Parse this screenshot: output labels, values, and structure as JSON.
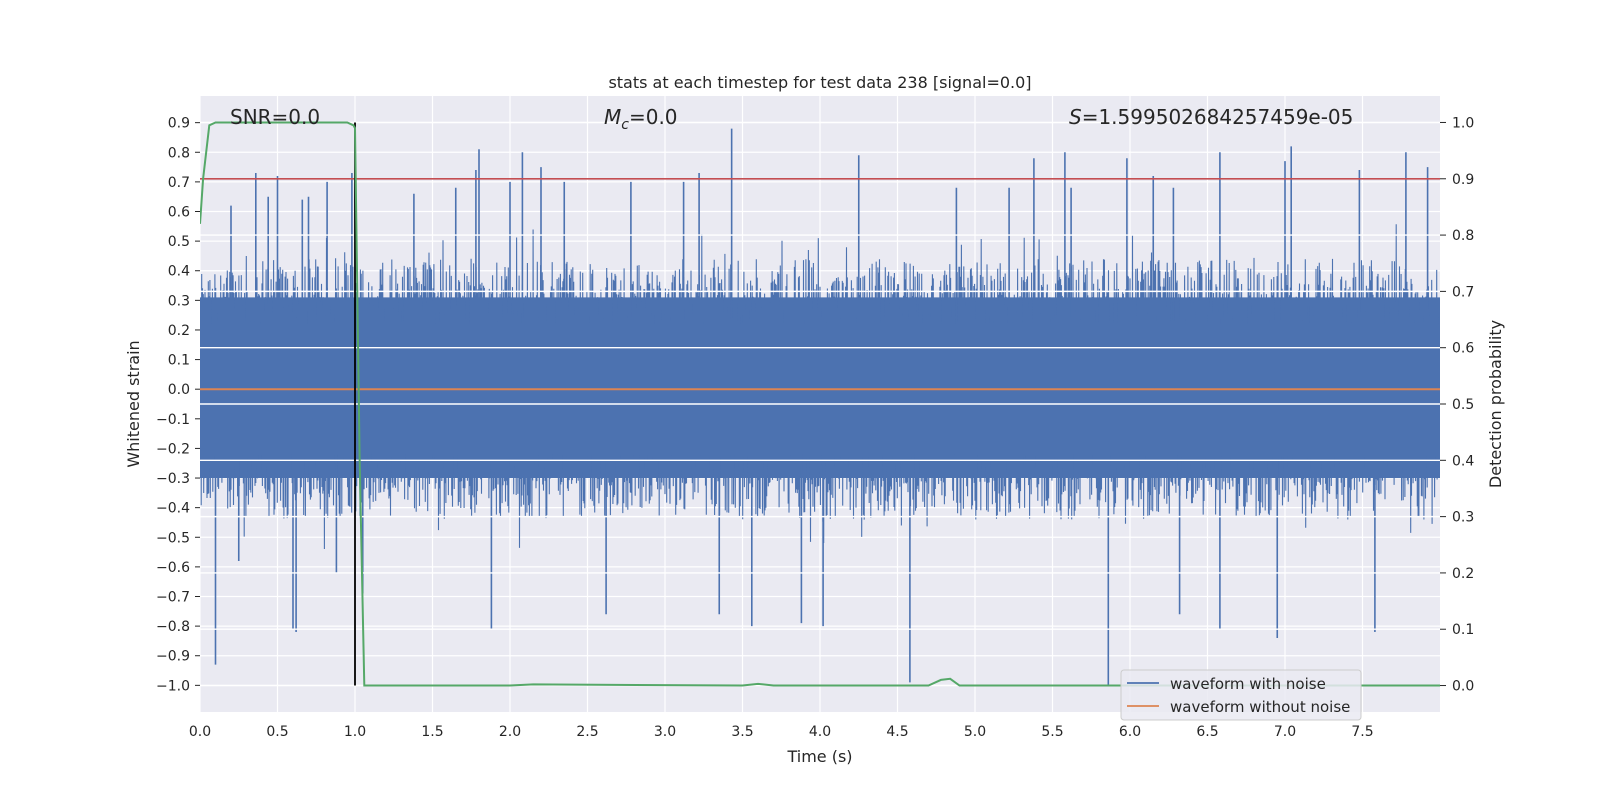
{
  "chart_data": {
    "type": "line",
    "title": "stats at each timestep for test data 238 [signal=0.0]",
    "xlabel": "Time (s)",
    "ylabel": "Whitened strain",
    "y2label": "Detection probability",
    "xlim": [
      0.0,
      8.0
    ],
    "ylim": [
      -1.09,
      0.99
    ],
    "y2lim": [
      -0.047,
      1.047
    ],
    "x_ticks": [
      0.0,
      0.5,
      1.0,
      1.5,
      2.0,
      2.5,
      3.0,
      3.5,
      4.0,
      4.5,
      5.0,
      5.5,
      6.0,
      6.5,
      7.0,
      7.5
    ],
    "y_ticks": [
      -1.0,
      -0.9,
      -0.8,
      -0.7,
      -0.6,
      -0.5,
      -0.4,
      -0.3,
      -0.2,
      -0.1,
      0.0,
      0.1,
      0.2,
      0.3,
      0.4,
      0.5,
      0.6,
      0.7,
      0.8,
      0.9
    ],
    "y2_ticks": [
      0.0,
      0.1,
      0.2,
      0.3,
      0.4,
      0.5,
      0.6,
      0.7,
      0.8,
      0.9,
      1.0
    ],
    "grid": true,
    "legend_position": "lower-right",
    "annotations": {
      "snr": "SNR=0.0",
      "mc_symbol": "M",
      "mc_sub": "c",
      "mc_value": "=0.0",
      "s_symbol": "S",
      "s_value": "=1.599502684257459e-05"
    },
    "series": [
      {
        "name": "waveform with noise",
        "color": "#4c72b0",
        "kind": "noise",
        "spikes": [
          [
            0.1,
            -0.93
          ],
          [
            0.2,
            0.62
          ],
          [
            0.25,
            -0.58
          ],
          [
            0.36,
            0.73
          ],
          [
            0.44,
            0.65
          ],
          [
            0.5,
            0.72
          ],
          [
            0.6,
            -0.81
          ],
          [
            0.62,
            -0.82
          ],
          [
            0.66,
            0.64
          ],
          [
            0.7,
            0.65
          ],
          [
            0.82,
            0.7
          ],
          [
            0.88,
            -0.62
          ],
          [
            0.98,
            0.73
          ],
          [
            1.05,
            -0.69
          ],
          [
            1.38,
            0.66
          ],
          [
            1.65,
            0.68
          ],
          [
            1.78,
            0.74
          ],
          [
            1.8,
            0.81
          ],
          [
            1.88,
            -0.81
          ],
          [
            2.0,
            0.7
          ],
          [
            2.08,
            0.8
          ],
          [
            2.2,
            0.75
          ],
          [
            2.35,
            0.7
          ],
          [
            2.62,
            -0.76
          ],
          [
            2.78,
            0.7
          ],
          [
            3.12,
            0.7
          ],
          [
            3.22,
            0.73
          ],
          [
            3.43,
            0.88
          ],
          [
            3.35,
            -0.76
          ],
          [
            3.56,
            -0.8
          ],
          [
            3.88,
            -0.79
          ],
          [
            4.02,
            -0.8
          ],
          [
            4.25,
            0.79
          ],
          [
            4.58,
            -0.99
          ],
          [
            4.88,
            0.68
          ],
          [
            5.22,
            0.68
          ],
          [
            5.38,
            0.78
          ],
          [
            5.58,
            0.8
          ],
          [
            5.62,
            0.68
          ],
          [
            5.86,
            -1.0
          ],
          [
            5.98,
            0.78
          ],
          [
            6.15,
            0.72
          ],
          [
            6.28,
            0.68
          ],
          [
            6.32,
            -0.76
          ],
          [
            6.58,
            -0.81
          ],
          [
            6.58,
            0.8
          ],
          [
            6.95,
            -0.84
          ],
          [
            7.0,
            0.77
          ],
          [
            7.04,
            0.82
          ],
          [
            7.48,
            0.74
          ],
          [
            7.58,
            -0.82
          ],
          [
            7.78,
            0.8
          ],
          [
            7.92,
            0.75
          ]
        ]
      },
      {
        "name": "waveform without noise",
        "color": "#dd8452",
        "x": [
          0.0,
          8.0
        ],
        "y": [
          0.0,
          0.0
        ]
      },
      {
        "color": "#55a868",
        "axis": "right",
        "x": [
          0.0,
          0.02,
          0.06,
          0.1,
          0.2,
          0.5,
          0.8,
          0.95,
          0.99,
          1.0,
          1.03,
          1.06,
          2.0,
          2.15,
          3.5,
          3.6,
          3.7,
          4.7,
          4.78,
          4.84,
          4.9,
          5.0,
          8.0
        ],
        "y": [
          0.82,
          0.9,
          0.995,
          1.0,
          1.0,
          1.0,
          1.0,
          1.0,
          0.995,
          0.99,
          0.4,
          0.0,
          0.0,
          0.002,
          0.0,
          0.003,
          0.0,
          0.0,
          0.01,
          0.012,
          0.0,
          0.0,
          0.0
        ]
      }
    ],
    "threshold_line": {
      "axis": "right",
      "y": 0.9,
      "color": "#c44e52"
    },
    "event_marker": {
      "x": 1.0,
      "color": "#000000"
    }
  }
}
